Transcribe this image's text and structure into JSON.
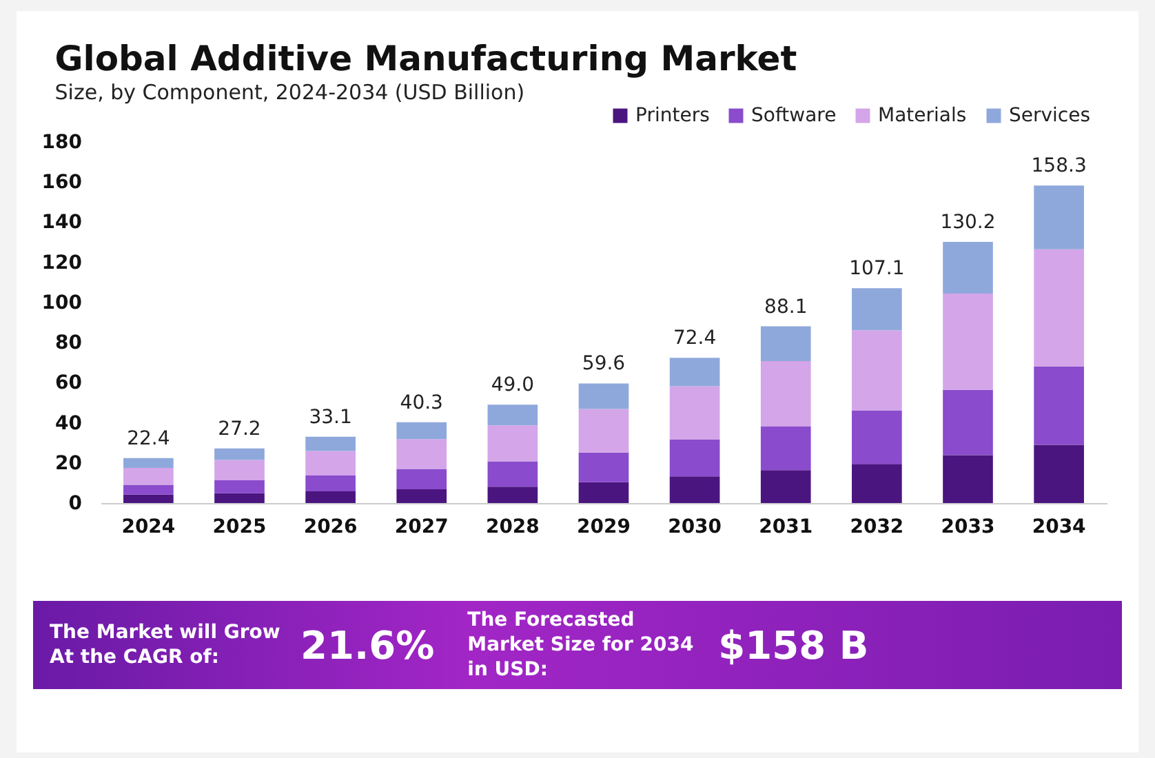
{
  "chart_data": {
    "type": "bar",
    "title": "Global Additive Manufacturing Market",
    "subtitle": "Size, by Component, 2024-2034 (USD Billion)",
    "categories": [
      "2024",
      "2025",
      "2026",
      "2027",
      "2028",
      "2029",
      "2030",
      "2031",
      "2032",
      "2033",
      "2034"
    ],
    "stacked": true,
    "series": [
      {
        "name": "Printers",
        "color": "#4b1580",
        "values": [
          4.2,
          4.9,
          5.8,
          6.9,
          8.2,
          10.4,
          13.3,
          16.4,
          19.5,
          23.9,
          29.0
        ]
      },
      {
        "name": "Software",
        "color": "#8a4bcc",
        "values": [
          4.9,
          6.4,
          7.9,
          10.1,
          12.6,
          14.8,
          18.3,
          21.9,
          26.7,
          32.5,
          39.1
        ]
      },
      {
        "name": "Materials",
        "color": "#d4a5e8",
        "values": [
          8.4,
          10.2,
          12.2,
          14.9,
          17.9,
          21.7,
          26.6,
          32.5,
          39.9,
          48.0,
          58.4
        ]
      },
      {
        "name": "Services",
        "color": "#8fa8dc",
        "values": [
          4.9,
          5.7,
          7.2,
          8.4,
          10.3,
          12.7,
          14.2,
          17.3,
          21.0,
          25.8,
          31.8
        ]
      }
    ],
    "totals": [
      "22.4",
      "27.2",
      "33.1",
      "40.3",
      "49.0",
      "59.6",
      "72.4",
      "88.1",
      "107.1",
      "130.2",
      "158.3"
    ],
    "ylim": [
      0,
      180
    ],
    "yticks": [
      0,
      20,
      40,
      60,
      80,
      100,
      120,
      140,
      160,
      180
    ],
    "legend": "top right",
    "annotations": [
      "The Market will Grow At the CAGR of:",
      "21.6%",
      "The Forecasted Market Size for 2034 in USD:",
      "$158 B"
    ]
  }
}
